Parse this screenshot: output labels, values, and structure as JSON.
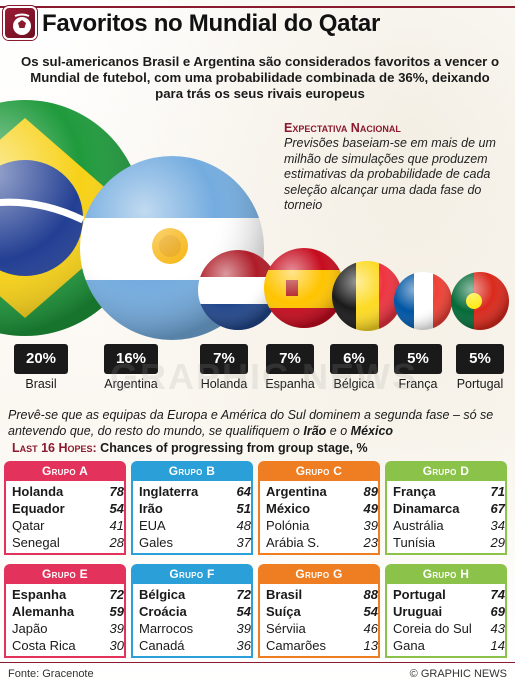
{
  "header": {
    "title": "Favoritos no Mundial do Qatar",
    "logo_icon": "trophy-ball-icon"
  },
  "intro": "Os sul-americanos Brasil e Argentina são considerados favoritos a vencer o Mundial de futebol, com uma probabilidade combinada de 36%, deixando para trás os seus rivais europeus",
  "expectation": {
    "title": "Expectativa Nacional",
    "body": "Previsões baseiam-se em mais de um milhão de simulações que produzem estimativas da probabilidade de cada seleção alcançar uma dada fase do torneio"
  },
  "favorites": [
    {
      "country": "Brasil",
      "pct": "20%",
      "value": 20
    },
    {
      "country": "Argentina",
      "pct": "16%",
      "value": 16
    },
    {
      "country": "Holanda",
      "pct": "7%",
      "value": 7
    },
    {
      "country": "Espanha",
      "pct": "7%",
      "value": 7
    },
    {
      "country": "Bélgica",
      "pct": "6%",
      "value": 6
    },
    {
      "country": "França",
      "pct": "5%",
      "value": 5
    },
    {
      "country": "Portugal",
      "pct": "5%",
      "value": 5
    }
  ],
  "watermark": "GRAPHIC NEWS",
  "prediction": {
    "text": "Prevê-se que as equipas da Europa e América do Sul dominem a segunda fase – só se antevendo que, do resto do mundo, se qualifiquem o",
    "team1": "Irão",
    "connector": "e o",
    "team2": "México"
  },
  "hopes": {
    "title": "Last 16 Hopes:",
    "subtitle": "Chances of progressing from group stage, %"
  },
  "groups": [
    {
      "name": "Grupo A",
      "color": "#e3335d",
      "teams": [
        {
          "name": "Holanda",
          "value": "78",
          "strong": true
        },
        {
          "name": "Equador",
          "value": "54",
          "strong": true
        },
        {
          "name": "Qatar",
          "value": "41",
          "strong": false
        },
        {
          "name": "Senegal",
          "value": "28",
          "strong": false
        }
      ]
    },
    {
      "name": "Grupo B",
      "color": "#2a9fd8",
      "teams": [
        {
          "name": "Inglaterra",
          "value": "64",
          "strong": true
        },
        {
          "name": "Irão",
          "value": "51",
          "strong": true
        },
        {
          "name": "EUA",
          "value": "48",
          "strong": false
        },
        {
          "name": "Gales",
          "value": "37",
          "strong": false
        }
      ]
    },
    {
      "name": "Grupo C",
      "color": "#ef7e22",
      "teams": [
        {
          "name": "Argentina",
          "value": "89",
          "strong": true
        },
        {
          "name": "México",
          "value": "49",
          "strong": true
        },
        {
          "name": "Polónia",
          "value": "39",
          "strong": false
        },
        {
          "name": "Arábia S.",
          "value": "23",
          "strong": false
        }
      ]
    },
    {
      "name": "Grupo D",
      "color": "#8bc34a",
      "teams": [
        {
          "name": "França",
          "value": "71",
          "strong": true
        },
        {
          "name": "Dinamarca",
          "value": "67",
          "strong": true
        },
        {
          "name": "Austrália",
          "value": "34",
          "strong": false
        },
        {
          "name": "Tunísia",
          "value": "29",
          "strong": false
        }
      ]
    },
    {
      "name": "Grupo E",
      "color": "#e3335d",
      "teams": [
        {
          "name": "Espanha",
          "value": "72",
          "strong": true
        },
        {
          "name": "Alemanha",
          "value": "59",
          "strong": true
        },
        {
          "name": "Japão",
          "value": "39",
          "strong": false
        },
        {
          "name": "Costa Rica",
          "value": "30",
          "strong": false
        }
      ]
    },
    {
      "name": "Grupo F",
      "color": "#2a9fd8",
      "teams": [
        {
          "name": "Bélgica",
          "value": "72",
          "strong": true
        },
        {
          "name": "Croácia",
          "value": "54",
          "strong": true
        },
        {
          "name": "Marrocos",
          "value": "39",
          "strong": false
        },
        {
          "name": "Canadá",
          "value": "36",
          "strong": false
        }
      ]
    },
    {
      "name": "Grupo G",
      "color": "#ef7e22",
      "teams": [
        {
          "name": "Brasil",
          "value": "88",
          "strong": true
        },
        {
          "name": "Suíça",
          "value": "54",
          "strong": true
        },
        {
          "name": "Sérviia",
          "value": "46",
          "strong": false
        },
        {
          "name": "Camarões",
          "value": "13",
          "strong": false
        }
      ]
    },
    {
      "name": "Grupo H",
      "color": "#8bc34a",
      "teams": [
        {
          "name": "Portugal",
          "value": "74",
          "strong": true
        },
        {
          "name": "Uruguai",
          "value": "69",
          "strong": true
        },
        {
          "name": "Coreia do Sul",
          "value": "43",
          "strong": false
        },
        {
          "name": "Gana",
          "value": "14",
          "strong": false
        }
      ]
    }
  ],
  "footer": {
    "source": "Fonte: Gracenote",
    "credit": "© GRAPHIC NEWS"
  }
}
